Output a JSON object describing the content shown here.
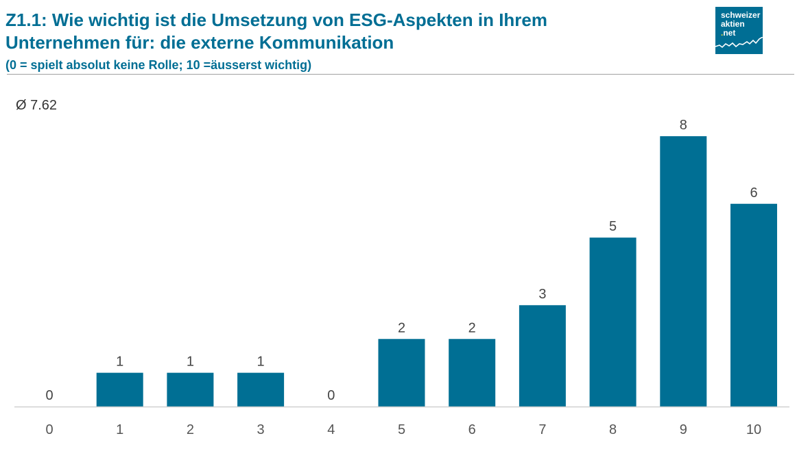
{
  "header": {
    "title_line1": "Z1.1: Wie wichtig ist die Umsetzung von ESG-Aspekten in Ihrem",
    "title_line2": "Unternehmen für: die externe Kommunikation",
    "subtitle": "(0 = spielt absolut keine Rolle; 10 =äusserst wichtig)"
  },
  "logo": {
    "line1": "schweizer",
    "line2": "aktien",
    "line3_dot": ".",
    "line3": "net",
    "icon": "stock-line-chart-icon"
  },
  "average_label": "Ø 7.62",
  "colors": {
    "accent": "#006e94",
    "bar": "#006f94",
    "logo_dot": "#e8d93a",
    "baseline": "#d0d0d0"
  },
  "chart_data": {
    "type": "bar",
    "title": "Z1.1: Wie wichtig ist die Umsetzung von ESG-Aspekten in Ihrem Unternehmen für: die externe Kommunikation",
    "subtitle": "(0 = spielt absolut keine Rolle; 10 =äusserst wichtig)",
    "annotation": "Ø 7.62",
    "categories": [
      "0",
      "1",
      "2",
      "3",
      "4",
      "5",
      "6",
      "7",
      "8",
      "9",
      "10"
    ],
    "values": [
      0,
      1,
      1,
      1,
      0,
      2,
      2,
      3,
      5,
      8,
      6
    ],
    "xlabel": "",
    "ylabel": "",
    "ylim": [
      0,
      8
    ],
    "grid": false,
    "data_labels": true,
    "legend": "none"
  }
}
